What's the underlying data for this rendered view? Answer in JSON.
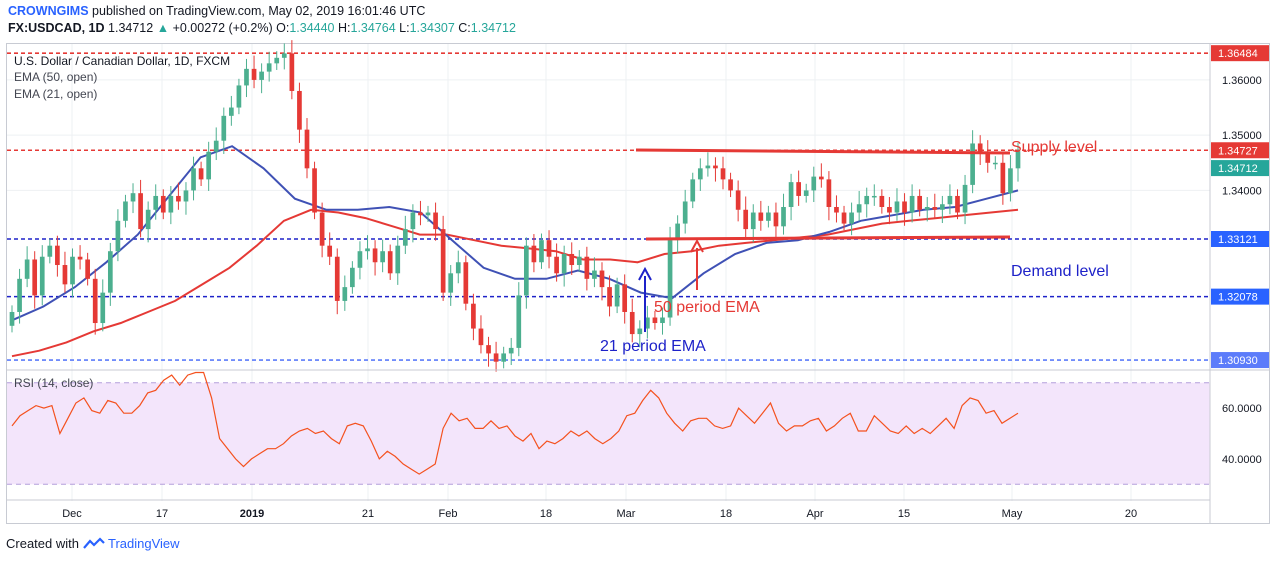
{
  "header": {
    "author": "CROWNGIMS",
    "published": "published on TradingView.com, May 02, 2019 16:01:46 UTC",
    "symbol": "FX:USDCAD, 1D",
    "last": "1.34712",
    "change": "+0.00272 (+0.2%)",
    "o_label": "O:",
    "o": "1.34440",
    "h_label": "H:",
    "h": "1.34764",
    "l_label": "L:",
    "l": "1.34307",
    "c_label": "C:",
    "c": "1.34712"
  },
  "legend": {
    "title": "U.S. Dollar / Canadian Dollar, 1D, FXCM",
    "ema50": "EMA (50, open)",
    "ema21": "EMA (21, open)",
    "rsi": "RSI (14, close)"
  },
  "annotations": {
    "supply": "Supply level",
    "demand": "Demand level",
    "ema50": "50 period EMA",
    "ema21": "21 period EMA"
  },
  "footer": {
    "created": "Created with",
    "brand": "TradingView"
  },
  "colors": {
    "up": "#4caf8f",
    "down": "#e53935",
    "ema50": "#e53935",
    "ema21": "#3f51b5",
    "red_level": "#e53935",
    "blue_level": "#1e22c9",
    "rsi_line": "#f4511e",
    "rsi_band": "#f3e5fb",
    "price_tag_red": "#e53935",
    "price_tag_blue": "#2962ff",
    "price_tag_green": "#26a69a"
  },
  "chart_data": {
    "type": "candlestick",
    "price_axis": {
      "ylim": [
        1.3075,
        1.3665
      ],
      "ticks": [
        "1.36000",
        "1.35000",
        "1.34000"
      ]
    },
    "x_ticks": [
      "Dec",
      "17",
      "2019",
      "21",
      "Feb",
      "18",
      "Mar",
      "18",
      "Apr",
      "15",
      "May",
      "20"
    ],
    "levels": [
      {
        "value": 1.36484,
        "label": "1.36484",
        "style": "red"
      },
      {
        "value": 1.34727,
        "label": "1.34727",
        "style": "red"
      },
      {
        "value": 1.34712,
        "label": "1.34712",
        "style": "current"
      },
      {
        "value": 1.33121,
        "label": "1.33121",
        "style": "blue"
      },
      {
        "value": 1.32078,
        "label": "1.32078",
        "style": "blue"
      },
      {
        "value": 1.3093,
        "label": "1.30930",
        "style": "blue-light"
      }
    ],
    "candles_close": [
      1.318,
      1.324,
      1.3275,
      1.321,
      1.328,
      1.33,
      1.3265,
      1.323,
      1.328,
      1.3275,
      1.324,
      1.316,
      1.3215,
      1.329,
      1.3345,
      1.338,
      1.3395,
      1.333,
      1.3365,
      1.339,
      1.336,
      1.339,
      1.338,
      1.34,
      1.344,
      1.342,
      1.347,
      1.349,
      1.3535,
      1.355,
      1.359,
      1.362,
      1.36,
      1.3615,
      1.363,
      1.364,
      1.3648,
      1.358,
      1.351,
      1.344,
      1.336,
      1.33,
      1.328,
      1.32,
      1.3225,
      1.326,
      1.329,
      1.3295,
      1.327,
      1.329,
      1.325,
      1.33,
      1.333,
      1.336,
      1.3355,
      1.336,
      1.333,
      1.3215,
      1.325,
      1.327,
      1.3195,
      1.315,
      1.312,
      1.3105,
      1.309,
      1.3105,
      1.3115,
      1.321,
      1.33,
      1.327,
      1.331,
      1.328,
      1.325,
      1.3285,
      1.3265,
      1.328,
      1.324,
      1.3255,
      1.3225,
      1.319,
      1.323,
      1.318,
      1.314,
      1.315,
      1.317,
      1.316,
      1.317,
      1.331,
      1.334,
      1.338,
      1.342,
      1.344,
      1.3445,
      1.344,
      1.342,
      1.34,
      1.3365,
      1.333,
      1.336,
      1.3345,
      1.336,
      1.3335,
      1.337,
      1.3415,
      1.339,
      1.34,
      1.3425,
      1.342,
      1.337,
      1.336,
      1.334,
      1.336,
      1.3375,
      1.339,
      1.339,
      1.337,
      1.336,
      1.338,
      1.336,
      1.339,
      1.3365,
      1.337,
      1.3365,
      1.3375,
      1.339,
      1.336,
      1.341,
      1.3485,
      1.347,
      1.345,
      1.345,
      1.3395,
      1.344,
      1.3471
    ],
    "ema50": [
      1.31,
      1.311,
      1.3125,
      1.3145,
      1.316,
      1.318,
      1.32,
      1.323,
      1.326,
      1.33,
      1.3345,
      1.3365,
      1.336,
      1.335,
      1.3335,
      1.332,
      1.332,
      1.331,
      1.33,
      1.3295,
      1.329,
      1.3275,
      1.3275,
      1.327,
      1.3285,
      1.329,
      1.33,
      1.3305,
      1.331,
      1.3315,
      1.332,
      1.333,
      1.334,
      1.3345,
      1.335,
      1.3355,
      1.336,
      1.3365
    ],
    "ema21": [
      1.3165,
      1.319,
      1.3225,
      1.327,
      1.332,
      1.339,
      1.346,
      1.348,
      1.344,
      1.3385,
      1.3365,
      1.3365,
      1.337,
      1.336,
      1.331,
      1.326,
      1.324,
      1.324,
      1.3255,
      1.324,
      1.3215,
      1.3205,
      1.325,
      1.3285,
      1.3305,
      1.331,
      1.3325,
      1.3345,
      1.3355,
      1.3365,
      1.337,
      1.3385,
      1.34
    ],
    "rsi": {
      "ylim": [
        25,
        75
      ],
      "ticks": [
        "60.0000",
        "40.0000"
      ],
      "bands": [
        70,
        30
      ],
      "values": [
        53,
        57,
        59,
        61,
        60,
        61,
        50,
        56,
        62,
        64,
        59,
        58,
        63,
        62,
        58,
        58,
        61,
        66,
        67,
        71,
        73,
        69,
        73,
        74,
        74,
        64,
        48,
        44,
        40,
        37,
        40,
        42,
        44,
        44,
        46,
        49,
        51,
        52,
        50,
        51,
        48,
        46,
        53,
        54,
        53,
        47,
        40,
        43,
        41,
        38,
        36,
        34,
        36,
        38,
        52,
        58,
        55,
        56,
        52,
        52,
        55,
        52,
        53,
        49,
        47,
        50,
        44,
        47,
        46,
        48,
        51,
        49,
        51,
        48,
        46,
        48,
        51,
        57,
        58,
        63,
        67,
        64,
        58,
        54,
        51,
        55,
        56,
        56,
        53,
        52,
        53,
        60,
        57,
        54,
        58,
        62,
        54,
        51,
        53,
        53,
        55,
        56,
        51,
        53,
        56,
        58,
        51,
        51,
        57,
        54,
        51,
        50,
        53,
        50,
        52,
        50,
        53,
        56,
        52,
        61,
        64,
        63,
        58,
        59,
        54,
        56,
        58
      ]
    }
  }
}
